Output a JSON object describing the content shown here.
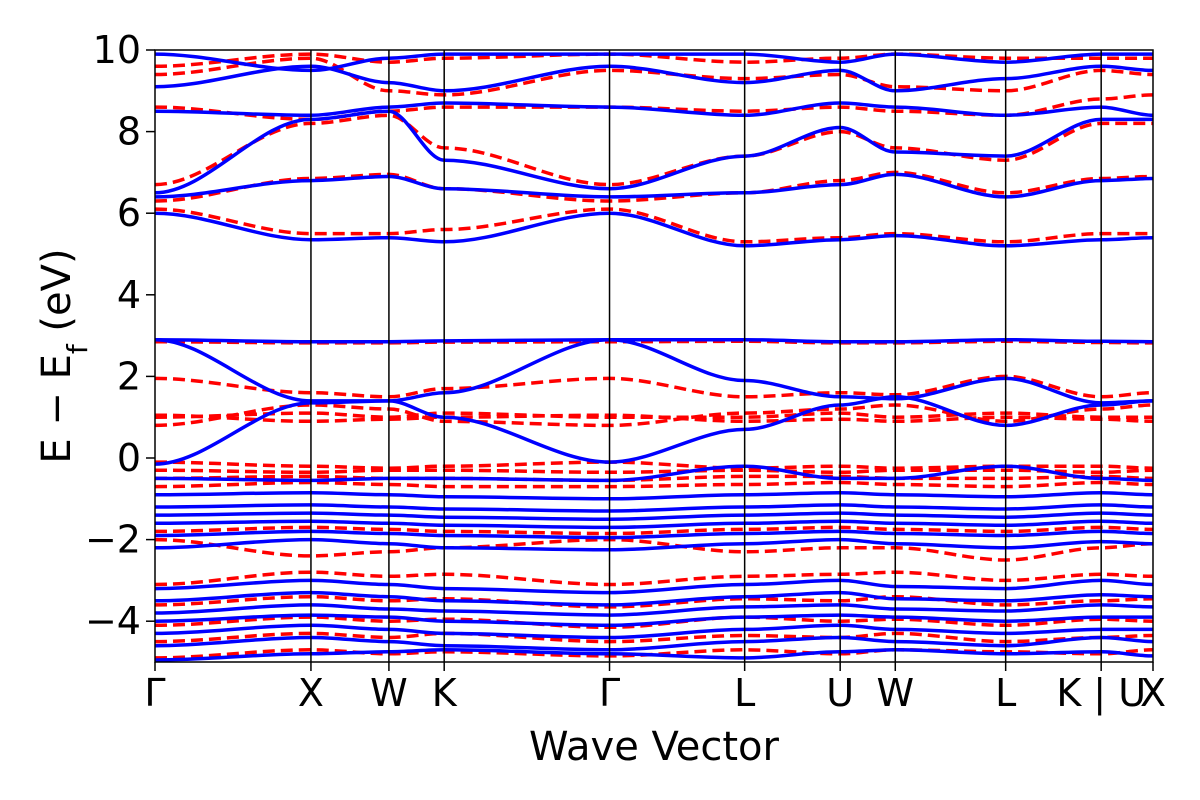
{
  "chart_data": {
    "type": "line",
    "title": "",
    "xlabel": "Wave Vector",
    "ylabel_main": "E − E",
    "ylabel_sub": "f",
    "ylabel_unit": " (eV)",
    "ylim": [
      -5,
      10
    ],
    "yticks": [
      -4,
      -2,
      0,
      2,
      4,
      6,
      8,
      10
    ],
    "ytick_labels": [
      "−4",
      "−2",
      "0",
      "2",
      "4",
      "6",
      "8",
      "10"
    ],
    "xlim": [
      0,
      6.374
    ],
    "kpoints": [
      {
        "label": "Γ",
        "x": 0.0
      },
      {
        "label": "X",
        "x": 0.996
      },
      {
        "label": "W",
        "x": 1.494
      },
      {
        "label": "K",
        "x": 1.847
      },
      {
        "label": "Γ",
        "x": 2.903
      },
      {
        "label": "L",
        "x": 3.766
      },
      {
        "label": "U",
        "x": 4.376
      },
      {
        "label": "W",
        "x": 4.728
      },
      {
        "label": "L",
        "x": 5.433
      },
      {
        "label": "K | U",
        "x": 6.043
      },
      {
        "label": "X",
        "x": 6.374
      }
    ],
    "colors": {
      "series_a": "#0000ff",
      "series_b": "#ff0000",
      "frame": "#000000"
    },
    "series": [
      {
        "name": "blue (solid)",
        "style": "solid",
        "bands": [
          [
            -4.95,
            -4.8,
            -4.75,
            -4.7,
            -4.8,
            -4.9,
            -4.75,
            -4.7,
            -4.8,
            -4.75,
            -4.85
          ],
          [
            -4.6,
            -4.4,
            -4.5,
            -4.6,
            -4.7,
            -4.5,
            -4.4,
            -4.5,
            -4.6,
            -4.4,
            -4.5
          ],
          [
            -4.3,
            -4.1,
            -4.2,
            -4.3,
            -4.4,
            -4.2,
            -4.1,
            -4.2,
            -4.3,
            -4.2,
            -4.2
          ],
          [
            -4.0,
            -3.85,
            -3.9,
            -4.0,
            -4.1,
            -3.9,
            -3.85,
            -3.9,
            -4.0,
            -3.9,
            -3.9
          ],
          [
            -3.8,
            -3.6,
            -3.7,
            -3.75,
            -3.85,
            -3.65,
            -3.6,
            -3.7,
            -3.75,
            -3.6,
            -3.65
          ],
          [
            -3.5,
            -3.3,
            -3.4,
            -3.5,
            -3.6,
            -3.4,
            -3.3,
            -3.45,
            -3.5,
            -3.35,
            -3.4
          ],
          [
            -3.2,
            -3.0,
            -3.1,
            -3.2,
            -3.3,
            -3.1,
            -3.0,
            -3.15,
            -3.2,
            -3.0,
            -3.1
          ],
          [
            -2.2,
            -2.0,
            -2.1,
            -2.2,
            -2.25,
            -2.1,
            -2.0,
            -2.1,
            -2.2,
            -2.05,
            -2.1
          ],
          [
            -1.9,
            -1.8,
            -1.85,
            -1.9,
            -1.95,
            -1.85,
            -1.8,
            -1.85,
            -1.9,
            -1.8,
            -1.85
          ],
          [
            -1.6,
            -1.55,
            -1.6,
            -1.65,
            -1.7,
            -1.6,
            -1.55,
            -1.6,
            -1.65,
            -1.55,
            -1.6
          ],
          [
            -1.4,
            -1.35,
            -1.4,
            -1.45,
            -1.5,
            -1.4,
            -1.35,
            -1.4,
            -1.45,
            -1.35,
            -1.4
          ],
          [
            -1.2,
            -1.15,
            -1.2,
            -1.25,
            -1.3,
            -1.2,
            -1.15,
            -1.2,
            -1.25,
            -1.15,
            -1.2
          ],
          [
            -0.9,
            -0.85,
            -0.9,
            -0.95,
            -1.0,
            -0.9,
            -0.85,
            -0.9,
            -0.95,
            -0.85,
            -0.9
          ],
          [
            -0.5,
            -0.55,
            -0.5,
            -0.5,
            -0.55,
            -0.2,
            -0.5,
            -0.5,
            -0.2,
            -0.5,
            -0.55
          ],
          [
            -0.15,
            1.35,
            1.4,
            1.0,
            -0.1,
            0.7,
            1.3,
            1.5,
            0.8,
            1.3,
            1.4
          ],
          [
            2.9,
            1.4,
            1.4,
            1.6,
            2.9,
            1.9,
            1.5,
            1.45,
            1.95,
            1.35,
            1.4
          ],
          [
            2.9,
            2.85,
            2.85,
            2.87,
            2.9,
            2.9,
            2.85,
            2.85,
            2.9,
            2.86,
            2.85
          ],
          [
            6.0,
            5.35,
            5.4,
            5.3,
            6.0,
            5.2,
            5.35,
            5.45,
            5.2,
            5.35,
            5.4
          ],
          [
            6.4,
            6.8,
            6.9,
            6.6,
            6.4,
            6.5,
            6.7,
            6.95,
            6.4,
            6.8,
            6.85
          ],
          [
            6.5,
            8.3,
            8.5,
            7.3,
            6.6,
            7.4,
            8.1,
            7.5,
            7.4,
            8.3,
            8.3
          ],
          [
            8.5,
            8.4,
            8.6,
            8.7,
            8.6,
            8.4,
            8.7,
            8.6,
            8.4,
            8.6,
            8.4
          ],
          [
            9.1,
            9.6,
            9.2,
            9.0,
            9.6,
            9.2,
            9.5,
            9.0,
            9.3,
            9.6,
            9.5
          ],
          [
            9.9,
            9.5,
            9.8,
            9.9,
            9.9,
            9.9,
            9.7,
            9.9,
            9.7,
            9.9,
            9.9
          ]
        ]
      },
      {
        "name": "red (dashed)",
        "style": "dashed",
        "bands": [
          [
            -4.9,
            -4.7,
            -4.8,
            -4.75,
            -4.85,
            -4.7,
            -4.8,
            -4.7,
            -4.75,
            -4.8,
            -4.7
          ],
          [
            -4.5,
            -4.3,
            -4.4,
            -4.3,
            -4.5,
            -4.35,
            -4.4,
            -4.3,
            -4.5,
            -4.4,
            -4.35
          ],
          [
            -4.1,
            -3.9,
            -4.0,
            -3.95,
            -4.15,
            -3.9,
            -4.0,
            -3.95,
            -4.1,
            -3.95,
            -4.0
          ],
          [
            -3.6,
            -3.4,
            -3.5,
            -3.45,
            -3.65,
            -3.45,
            -3.5,
            -3.4,
            -3.6,
            -3.5,
            -3.45
          ],
          [
            -3.1,
            -2.8,
            -2.9,
            -2.85,
            -3.1,
            -2.9,
            -2.85,
            -2.8,
            -3.0,
            -2.85,
            -2.9
          ],
          [
            -2.0,
            -2.4,
            -2.3,
            -2.2,
            -2.0,
            -2.3,
            -2.2,
            -2.2,
            -2.5,
            -2.2,
            -2.1
          ],
          [
            -1.8,
            -1.7,
            -1.75,
            -1.8,
            -1.85,
            -1.75,
            -1.7,
            -1.75,
            -1.8,
            -1.7,
            -1.75
          ],
          [
            -0.7,
            -0.6,
            -0.65,
            -0.7,
            -0.7,
            -0.65,
            -0.6,
            -0.65,
            -0.7,
            -0.6,
            -0.65
          ],
          [
            -0.5,
            -0.45,
            -0.5,
            -0.5,
            -0.55,
            -0.45,
            -0.45,
            -0.5,
            -0.5,
            -0.45,
            -0.5
          ],
          [
            -0.3,
            -0.35,
            -0.3,
            -0.3,
            -0.35,
            -0.3,
            -0.35,
            -0.3,
            -0.3,
            -0.35,
            -0.3
          ],
          [
            -0.1,
            -0.2,
            -0.25,
            -0.2,
            -0.1,
            -0.25,
            -0.2,
            -0.25,
            -0.2,
            -0.2,
            -0.25
          ],
          [
            0.8,
            1.3,
            1.2,
            0.9,
            0.8,
            1.1,
            1.2,
            1.3,
            0.9,
            1.2,
            1.3
          ],
          [
            1.0,
            1.1,
            1.0,
            1.1,
            1.0,
            1.0,
            1.1,
            1.0,
            1.1,
            1.0,
            1.0
          ],
          [
            1.05,
            0.9,
            0.95,
            1.0,
            1.05,
            0.9,
            0.95,
            0.9,
            1.0,
            0.95,
            0.9
          ],
          [
            1.95,
            1.6,
            1.5,
            1.7,
            1.95,
            1.5,
            1.6,
            1.55,
            2.0,
            1.5,
            1.6
          ],
          [
            2.85,
            2.82,
            2.82,
            2.84,
            2.85,
            2.86,
            2.82,
            2.82,
            2.86,
            2.83,
            2.82
          ],
          [
            6.1,
            5.5,
            5.5,
            5.6,
            6.1,
            5.3,
            5.4,
            5.5,
            5.3,
            5.5,
            5.5
          ],
          [
            6.3,
            6.85,
            6.95,
            6.6,
            6.3,
            6.5,
            6.8,
            7.0,
            6.5,
            6.85,
            6.9
          ],
          [
            6.7,
            8.2,
            8.4,
            7.6,
            6.7,
            7.4,
            8.0,
            7.6,
            7.3,
            8.2,
            8.2
          ],
          [
            8.6,
            8.3,
            8.5,
            8.6,
            8.6,
            8.5,
            8.6,
            8.5,
            8.4,
            8.8,
            8.9
          ],
          [
            9.4,
            9.8,
            9.0,
            8.9,
            9.5,
            9.3,
            9.4,
            9.1,
            9.0,
            9.5,
            9.4
          ],
          [
            9.6,
            9.9,
            9.7,
            9.8,
            9.9,
            9.7,
            9.8,
            9.9,
            9.8,
            9.8,
            9.8
          ]
        ]
      }
    ]
  }
}
